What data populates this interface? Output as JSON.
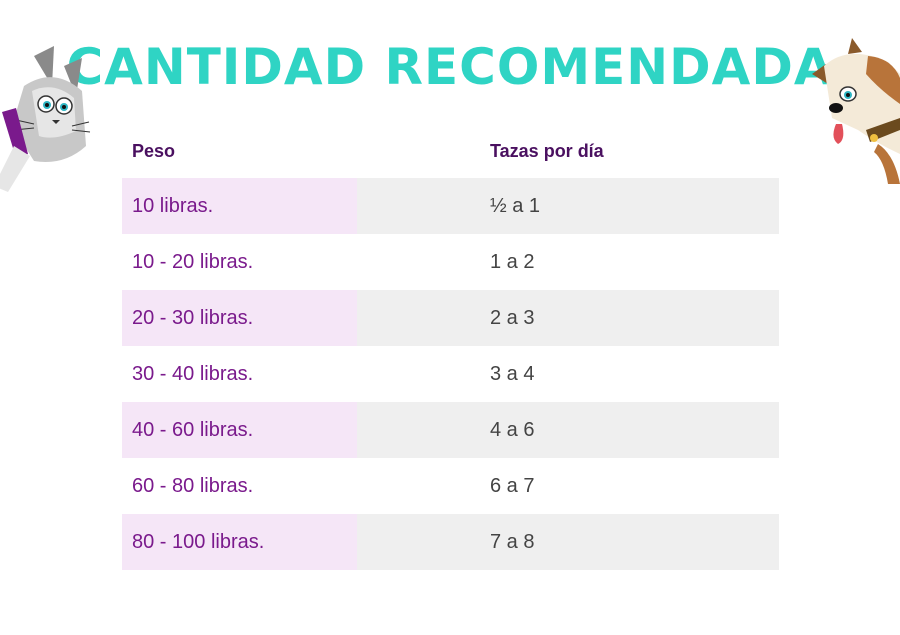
{
  "title": "CANTIDAD RECOMENDADA",
  "table": {
    "headers": [
      "Peso",
      "Tazas por día"
    ],
    "rows": [
      {
        "peso": "10 libras.",
        "tazas": "½ a 1"
      },
      {
        "peso": "10 - 20 libras.",
        "tazas": "1 a 2"
      },
      {
        "peso": "20 - 30 libras.",
        "tazas": "2 a 3"
      },
      {
        "peso": "30 - 40 libras.",
        "tazas": "3 a 4"
      },
      {
        "peso": "40 - 60 libras.",
        "tazas": "4 a 6"
      },
      {
        "peso": "60 - 80 libras.",
        "tazas": "6 a 7"
      },
      {
        "peso": "80 - 100 libras.",
        "tazas": "7 a 8"
      }
    ]
  },
  "colors": {
    "title": "#2fd4c4",
    "header_text": "#4a1060",
    "weight_text": "#7a1a8c",
    "cups_text": "#444444",
    "weight_shade": "#f5e6f7",
    "cups_shade": "#efefef"
  },
  "illustrations": [
    "cat-illustration",
    "dog-illustration"
  ]
}
